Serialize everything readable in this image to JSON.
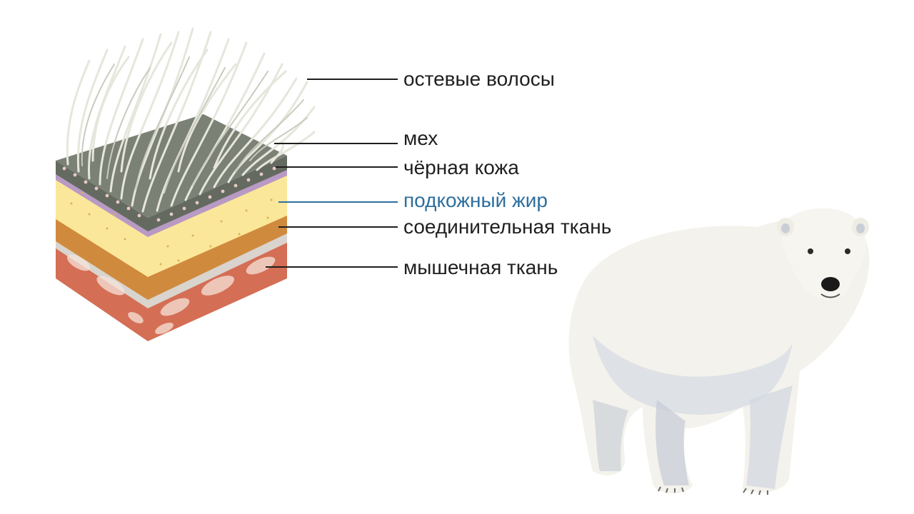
{
  "labels": {
    "guard_hair": "остевые волосы",
    "fur": "мех",
    "black_skin": "чёрная кожа",
    "subcutaneous_fat": "подкожный жир",
    "connective_tissue": "соединительная ткань",
    "muscle_tissue": "мышечная ткань"
  },
  "colors": {
    "text": "#1f1f1f",
    "highlight": "#2e6f9e",
    "leader": "#1f1f1f",
    "leader_highlight": "#2e6f9e",
    "hair": "#e6e6dc",
    "hair_shade": "#c9cbbf",
    "skin_top": "#6f7569",
    "skin_dots": "#e8c9c4",
    "purple_band": "#b89ac4",
    "fat": "#fbe79a",
    "fat_dots": "#d7b455",
    "connective": "#d08a3e",
    "connective_light": "#cfc9c1",
    "muscle": "#d46e55",
    "muscle_light": "#f6e4da",
    "bear_fur": "#f4f2ec",
    "bear_shadow": "#c5cbd6",
    "bear_nose": "#1a1a1a"
  },
  "icons": [
    "skin-cross-section-illustration",
    "polar-bear-illustration"
  ]
}
